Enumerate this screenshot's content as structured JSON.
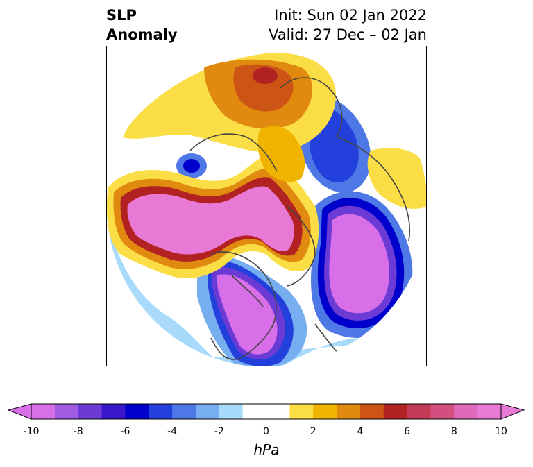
{
  "title": {
    "left_line1": "SLP",
    "left_line2": "Anomaly",
    "right_line1": "Init: Sun 02 Jan 2022",
    "right_line2": "Valid: 27 Dec – 02 Jan"
  },
  "colorbar": {
    "label": "hPa",
    "ticks": [
      "-10",
      "-8",
      "-6",
      "-4",
      "-2",
      "0",
      "2",
      "4",
      "6",
      "8",
      "10"
    ],
    "colors": [
      "#d86fe8",
      "#a15be3",
      "#6c3bd6",
      "#3a17cc",
      "#0000cc",
      "#2440dc",
      "#4d78e6",
      "#77aef0",
      "#a8dbfb",
      "#ffffff",
      "#ffffff",
      "#fbdd45",
      "#f0b400",
      "#e08b10",
      "#cc5515",
      "#b22222",
      "#c23a55",
      "#d24f80",
      "#e06aba",
      "#e87ad6"
    ],
    "extend_low_color": "#d86fe8",
    "extend_high_color": "#e87ad6"
  }
}
